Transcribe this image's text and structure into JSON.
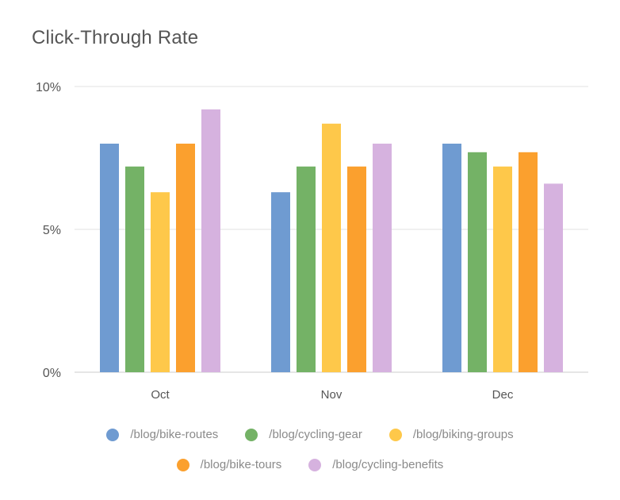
{
  "chart_data": {
    "type": "bar",
    "title": "Click-Through Rate",
    "xlabel": "",
    "ylabel": "",
    "categories": [
      "Oct",
      "Nov",
      "Dec"
    ],
    "yticks": [
      "0%",
      "5%",
      "10%"
    ],
    "ylim": [
      0,
      10
    ],
    "grid": true,
    "legend_position": "bottom",
    "series": [
      {
        "name": "/blog/bike-routes",
        "color": "#6f9bd1",
        "values": [
          8.0,
          6.3,
          8.0
        ]
      },
      {
        "name": "/blog/cycling-gear",
        "color": "#74b266",
        "values": [
          7.2,
          7.2,
          7.7
        ]
      },
      {
        "name": "/blog/biking-groups",
        "color": "#fec84a",
        "values": [
          6.3,
          8.7,
          7.2
        ]
      },
      {
        "name": "/blog/bike-tours",
        "color": "#fba02e",
        "values": [
          8.0,
          7.2,
          7.7
        ]
      },
      {
        "name": "/blog/cycling-benefits",
        "color": "#d6b2df",
        "values": [
          9.2,
          8.0,
          6.6
        ]
      }
    ]
  }
}
